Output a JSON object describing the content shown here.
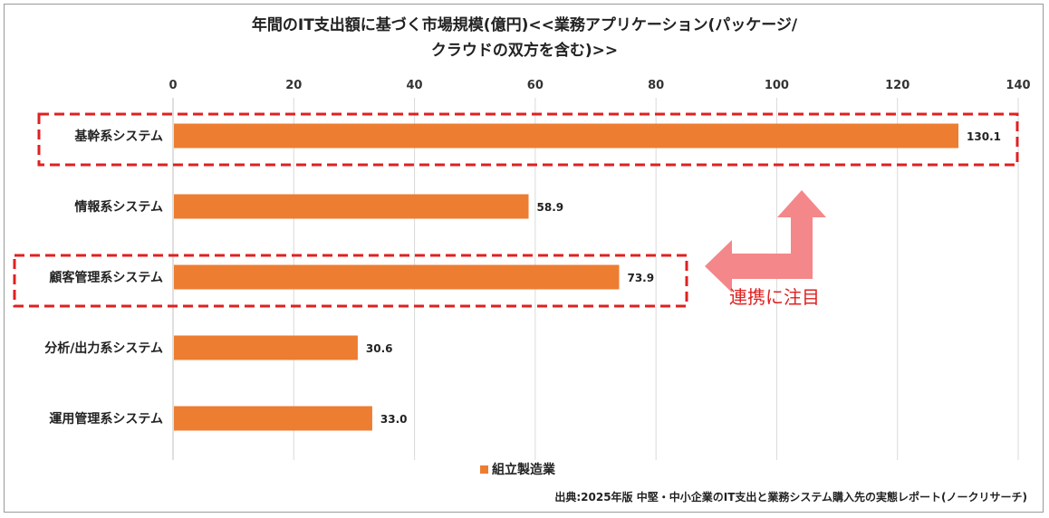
{
  "chart_data": {
    "type": "bar",
    "orientation": "horizontal",
    "title_line1": "年間のIT支出額に基づく市場規模(億円)<<業務アプリケーション(パッケージ/",
    "title_line2": "クラウドの双方を含む)>>",
    "categories": [
      "基幹系システム",
      "情報系システム",
      "顧客管理系システム",
      "分析/出力系システム",
      "運用管理系システム"
    ],
    "series": [
      {
        "name": "組立製造業",
        "values": [
          130.1,
          58.9,
          73.9,
          30.6,
          33.0
        ],
        "color": "#ED7D31"
      }
    ],
    "value_labels": [
      "130.1",
      "58.9",
      "73.9",
      "30.6",
      "33.0"
    ],
    "xlim": [
      0,
      140
    ],
    "xticks": [
      0,
      20,
      40,
      60,
      80,
      100,
      120,
      140
    ],
    "xtick_labels": [
      "0",
      "20",
      "40",
      "60",
      "80",
      "100",
      "120",
      "140"
    ],
    "axis_position": "top",
    "grid": true,
    "legend_position": "bottom",
    "highlighted_categories": [
      "基幹系システム",
      "顧客管理系システム"
    ],
    "annotation": "連携に注目",
    "annotation_color": "#E02020",
    "arrow_color": "#F4878A"
  },
  "source": "出典:2025年版 中堅・中小企業のIT支出と業務システム購入先の実態レポート(ノークリサーチ)"
}
